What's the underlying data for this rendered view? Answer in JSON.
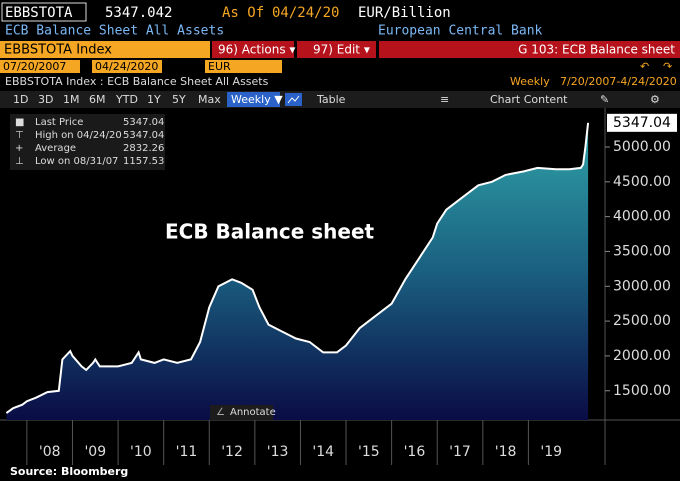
{
  "header": {
    "ticker": "EBBSTOTA",
    "price": "5347.042",
    "as_of_label": "As Of",
    "as_of_date": "04/24/20",
    "units": "EUR/Billion",
    "description": "ECB Balance Sheet All Assets",
    "source_name": "European Central Bank"
  },
  "command_bar": {
    "security": "EBBSTOTA Index",
    "actions": "96) Actions ▾",
    "edit": "97) Edit ▾",
    "function": "G 103: ECB Balance sheet"
  },
  "inputs": {
    "start": "07/20/2007",
    "end": "04/24/2020",
    "currency": "EUR"
  },
  "info_bar": {
    "title": "EBBSTOTA Index : ECB Balance Sheet All Assets",
    "frequency": "Weekly",
    "range": "7/20/2007-4/24/2020"
  },
  "toolbar": {
    "periods": [
      "1D",
      "3D",
      "1M",
      "6M",
      "YTD",
      "1Y",
      "5Y",
      "Max"
    ],
    "frequency": "Weekly ▼",
    "table": "Table",
    "chart_content": "Chart Content"
  },
  "chart_data": {
    "type": "area",
    "annotation": "ECB Balance sheet",
    "annotate_button": "Annotate",
    "source": "Source: Bloomberg",
    "series": [
      {
        "name": "Last Price",
        "color": "#ffffff",
        "x": [
          2007.55,
          2007.7,
          2007.9,
          2008.0,
          2008.2,
          2008.45,
          2008.7,
          2008.78,
          2008.95,
          2009.0,
          2009.2,
          2009.3,
          2009.45,
          2009.5,
          2009.6,
          2009.8,
          2010.0,
          2010.3,
          2010.45,
          2010.5,
          2010.8,
          2011.0,
          2011.3,
          2011.6,
          2011.8,
          2012.0,
          2012.2,
          2012.5,
          2012.7,
          2012.95,
          2013.1,
          2013.3,
          2013.6,
          2013.9,
          2014.2,
          2014.5,
          2014.8,
          2015.0,
          2015.3,
          2015.6,
          2016.0,
          2016.3,
          2016.6,
          2016.9,
          2017.0,
          2017.2,
          2017.5,
          2017.9,
          2018.2,
          2018.5,
          2018.9,
          2019.2,
          2019.6,
          2019.9,
          2020.15,
          2020.2,
          2020.25,
          2020.31
        ],
        "values": [
          1180,
          1250,
          1300,
          1350,
          1400,
          1480,
          1500,
          1950,
          2070,
          2000,
          1850,
          1800,
          1900,
          1950,
          1850,
          1850,
          1850,
          1900,
          2050,
          1950,
          1900,
          1950,
          1900,
          1950,
          2200,
          2700,
          3000,
          3100,
          3050,
          2950,
          2700,
          2450,
          2350,
          2250,
          2200,
          2050,
          2050,
          2150,
          2400,
          2550,
          2750,
          3100,
          3400,
          3700,
          3900,
          4100,
          4250,
          4450,
          4500,
          4600,
          4650,
          4700,
          4680,
          4680,
          4700,
          4750,
          5000,
          5347.04
        ]
      }
    ],
    "legend": [
      {
        "name": "Last Price",
        "value": "5347.04"
      },
      {
        "name": "High on 04/24/20",
        "value": "5347.04"
      },
      {
        "name": "Average",
        "value": "2832.26"
      },
      {
        "name": "Low on 08/31/07",
        "value": "1157.53"
      }
    ],
    "xlim": [
      2007.52,
      2020.68
    ],
    "xticks": [
      {
        "value": 2008.5,
        "label": "'08"
      },
      {
        "value": 2009.5,
        "label": "'09"
      },
      {
        "value": 2010.5,
        "label": "'10"
      },
      {
        "value": 2011.5,
        "label": "'11"
      },
      {
        "value": 2012.5,
        "label": "'12"
      },
      {
        "value": 2013.5,
        "label": "'13"
      },
      {
        "value": 2014.5,
        "label": "'14"
      },
      {
        "value": 2015.5,
        "label": "'15"
      },
      {
        "value": 2016.5,
        "label": "'16"
      },
      {
        "value": 2017.5,
        "label": "'17"
      },
      {
        "value": 2018.5,
        "label": "'18"
      },
      {
        "value": 2019.5,
        "label": "'19"
      }
    ],
    "ylim": [
      1080,
      5560
    ],
    "yticks": [
      {
        "value": 1500,
        "label": "1500.00"
      },
      {
        "value": 2000,
        "label": "2000.00"
      },
      {
        "value": 2500,
        "label": "2500.00"
      },
      {
        "value": 3000,
        "label": "3000.00"
      },
      {
        "value": 3500,
        "label": "3500.00"
      },
      {
        "value": 4000,
        "label": "4000.00"
      },
      {
        "value": 4500,
        "label": "4500.00"
      },
      {
        "value": 5000,
        "label": "5000.00"
      }
    ]
  }
}
